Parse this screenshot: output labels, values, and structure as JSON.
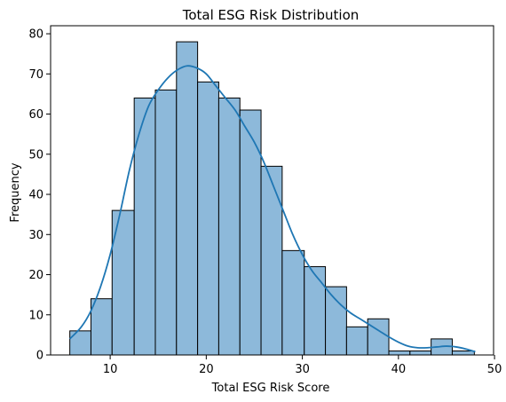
{
  "chart_data": {
    "type": "bar",
    "subtype": "histogram",
    "title": "Total ESG Risk Distribution",
    "xlabel": "Total ESG Risk Score",
    "ylabel": "Frequency",
    "xlim": [
      3.8,
      49.9
    ],
    "ylim": [
      0,
      82
    ],
    "xticks": [
      10,
      20,
      30,
      40,
      50
    ],
    "yticks": [
      0,
      10,
      20,
      30,
      40,
      50,
      60,
      70,
      80
    ],
    "bins": [
      {
        "x0": 5.8,
        "x1": 8.0,
        "value": 6
      },
      {
        "x0": 8.0,
        "x1": 10.2,
        "value": 14
      },
      {
        "x0": 10.2,
        "x1": 12.5,
        "value": 36
      },
      {
        "x0": 12.5,
        "x1": 14.7,
        "value": 64
      },
      {
        "x0": 14.7,
        "x1": 16.9,
        "value": 66
      },
      {
        "x0": 16.9,
        "x1": 19.1,
        "value": 78
      },
      {
        "x0": 19.1,
        "x1": 21.3,
        "value": 68
      },
      {
        "x0": 21.3,
        "x1": 23.5,
        "value": 64
      },
      {
        "x0": 23.5,
        "x1": 25.7,
        "value": 61
      },
      {
        "x0": 25.7,
        "x1": 27.9,
        "value": 47
      },
      {
        "x0": 27.9,
        "x1": 30.2,
        "value": 26
      },
      {
        "x0": 30.2,
        "x1": 32.4,
        "value": 22
      },
      {
        "x0": 32.4,
        "x1": 34.6,
        "value": 17
      },
      {
        "x0": 34.6,
        "x1": 36.8,
        "value": 7
      },
      {
        "x0": 36.8,
        "x1": 39.0,
        "value": 9
      },
      {
        "x0": 39.0,
        "x1": 41.2,
        "value": 1
      },
      {
        "x0": 41.2,
        "x1": 43.4,
        "value": 1
      },
      {
        "x0": 43.4,
        "x1": 45.6,
        "value": 4
      },
      {
        "x0": 45.6,
        "x1": 47.9,
        "value": 1
      }
    ],
    "kde": {
      "x": [
        5.8,
        7.0,
        8.0,
        9.0,
        10.0,
        11.0,
        12.0,
        13.0,
        14.0,
        15.0,
        16.0,
        17.0,
        18.0,
        19.0,
        20.0,
        21.0,
        22.0,
        23.0,
        24.0,
        25.0,
        26.0,
        27.0,
        28.0,
        29.0,
        30.0,
        31.0,
        32.0,
        33.0,
        34.0,
        35.0,
        36.0,
        37.0,
        38.0,
        39.0,
        40.0,
        41.0,
        42.0,
        43.0,
        44.0,
        45.0,
        46.0,
        47.0,
        48.0
      ],
      "y": [
        4,
        7,
        11,
        17,
        25,
        35,
        46,
        55,
        62,
        66,
        69,
        71,
        72,
        71.5,
        70,
        67,
        64,
        61,
        57,
        53,
        48,
        42,
        36,
        30,
        25,
        21,
        18,
        15,
        12.5,
        10.5,
        9,
        7.5,
        6,
        4.5,
        3.2,
        2.2,
        1.8,
        1.8,
        2,
        2.2,
        2,
        1.5,
        0.8
      ]
    },
    "bar_color": "#8db9da",
    "bar_edge": "#000000",
    "line_color": "#1f77b4",
    "grid": false,
    "legend": "none"
  }
}
